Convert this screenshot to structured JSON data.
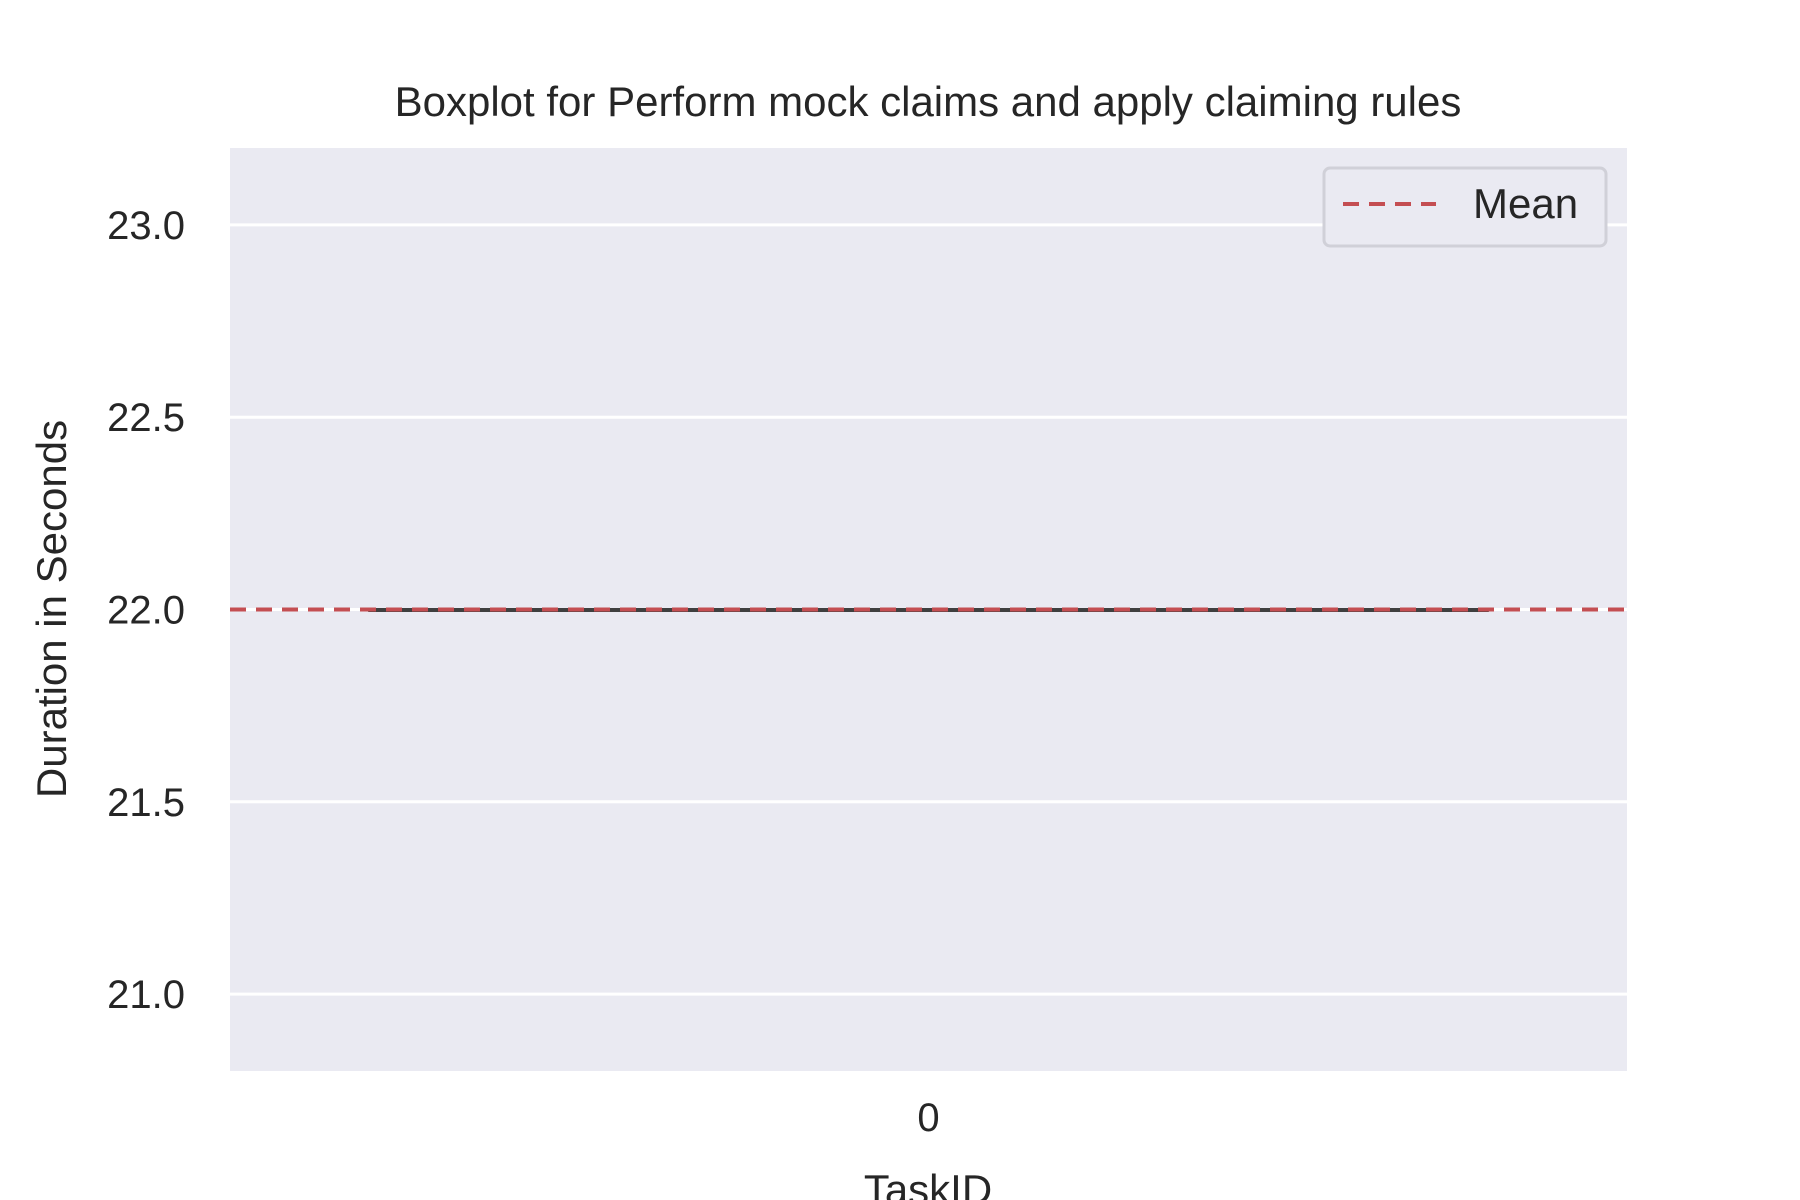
{
  "chart_data": {
    "type": "box",
    "title": "Boxplot for Perform mock claims and apply claiming rules",
    "xlabel": "TaskID",
    "ylabel": "Duration in Seconds",
    "categories": [
      "0"
    ],
    "ylim": [
      20.8,
      23.2
    ],
    "yticks": [
      21.0,
      21.5,
      22.0,
      22.5,
      23.0
    ],
    "ytick_labels": [
      "21.0",
      "21.5",
      "22.0",
      "22.5",
      "23.0"
    ],
    "boxes": [
      {
        "category": "0",
        "min": 22.0,
        "q1": 22.0,
        "median": 22.0,
        "q3": 22.0,
        "max": 22.0
      }
    ],
    "mean": 22.0,
    "legend": {
      "entries": [
        "Mean"
      ],
      "placement": "top-right"
    },
    "grid": true,
    "colors": {
      "background": "#eaeaf2",
      "grid": "#ffffff",
      "mean_line": "#c44e52",
      "box_line": "#3f3f3f",
      "text": "#262626"
    }
  }
}
